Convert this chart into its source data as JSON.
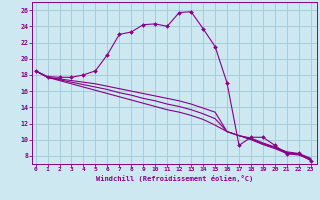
{
  "xlabel": "Windchill (Refroidissement éolien,°C)",
  "background_color": "#cde8f0",
  "grid_color": "#a0c8d8",
  "line_color": "#880088",
  "x_ticks": [
    0,
    1,
    2,
    3,
    4,
    5,
    6,
    7,
    8,
    9,
    10,
    11,
    12,
    13,
    14,
    15,
    16,
    17,
    18,
    19,
    20,
    21,
    22,
    23
  ],
  "y_ticks": [
    8,
    10,
    12,
    14,
    16,
    18,
    20,
    22,
    24,
    26
  ],
  "xlim": [
    -0.3,
    23.5
  ],
  "ylim": [
    7.0,
    27.0
  ],
  "curve1_x": [
    0,
    1,
    2,
    3,
    4,
    5,
    6,
    7,
    8,
    9,
    10,
    11,
    12,
    13,
    14,
    15,
    16,
    17,
    18,
    19,
    20,
    21,
    22,
    23
  ],
  "curve1_y": [
    18.5,
    17.8,
    17.7,
    17.7,
    18.0,
    18.5,
    20.5,
    23.0,
    23.3,
    24.2,
    24.3,
    24.0,
    25.7,
    25.8,
    23.7,
    21.5,
    17.0,
    9.3,
    10.3,
    10.3,
    9.3,
    8.2,
    8.3,
    7.4
  ],
  "curve2_x": [
    0,
    1,
    2,
    3,
    4,
    5,
    6,
    7,
    8,
    9,
    10,
    11,
    12,
    13,
    14,
    15,
    16,
    17,
    18,
    19,
    20,
    21,
    22,
    23
  ],
  "curve2_y": [
    18.5,
    17.7,
    17.5,
    17.3,
    17.1,
    16.9,
    16.6,
    16.3,
    16.0,
    15.7,
    15.4,
    15.1,
    14.8,
    14.4,
    13.9,
    13.4,
    11.0,
    10.5,
    10.2,
    9.6,
    9.1,
    8.5,
    8.3,
    7.7
  ],
  "curve3_x": [
    0,
    1,
    2,
    3,
    4,
    5,
    6,
    7,
    8,
    9,
    10,
    11,
    12,
    13,
    14,
    15,
    16,
    17,
    18,
    19,
    20,
    21,
    22,
    23
  ],
  "curve3_y": [
    18.5,
    17.7,
    17.4,
    17.1,
    16.8,
    16.5,
    16.2,
    15.8,
    15.5,
    15.1,
    14.8,
    14.4,
    14.1,
    13.7,
    13.2,
    12.6,
    11.0,
    10.5,
    10.1,
    9.5,
    9.0,
    8.4,
    8.2,
    7.6
  ],
  "curve4_x": [
    0,
    1,
    2,
    3,
    4,
    5,
    6,
    7,
    8,
    9,
    10,
    11,
    12,
    13,
    14,
    15,
    16,
    17,
    18,
    19,
    20,
    21,
    22,
    23
  ],
  "curve4_y": [
    18.5,
    17.7,
    17.3,
    16.9,
    16.5,
    16.1,
    15.7,
    15.3,
    14.9,
    14.5,
    14.1,
    13.7,
    13.4,
    13.0,
    12.5,
    11.8,
    11.0,
    10.5,
    10.0,
    9.4,
    8.9,
    8.3,
    8.1,
    7.5
  ]
}
